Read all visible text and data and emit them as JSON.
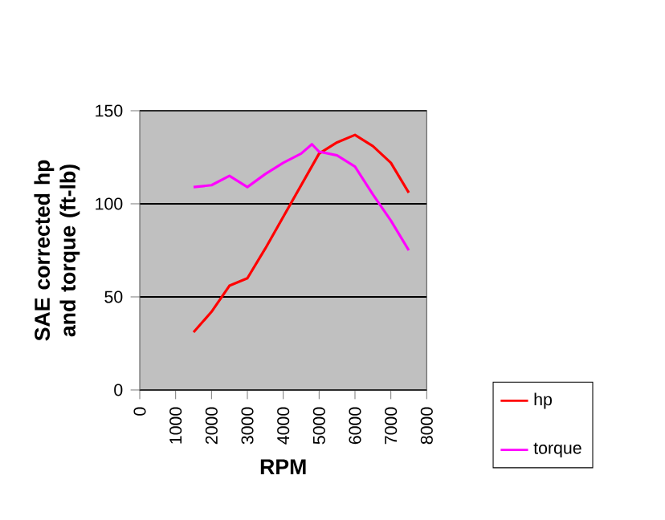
{
  "chart_data": {
    "type": "line",
    "xlabel": "RPM",
    "ylabel": "SAE corrected hp and torque (ft-lb)",
    "xlim": [
      0,
      8000
    ],
    "xticks": [
      0,
      1000,
      2000,
      3000,
      4000,
      5000,
      6000,
      7000,
      8000
    ],
    "ylim": [
      0,
      150
    ],
    "yticks": [
      0,
      50,
      100,
      150
    ],
    "grid": "y",
    "legend": "right",
    "marker": "none",
    "line_style": "solid",
    "series": [
      {
        "name": "hp",
        "color": "#ff0000",
        "x": [
          1500,
          2000,
          2500,
          3000,
          3500,
          4000,
          4500,
          5000,
          5500,
          6000,
          6500,
          7000,
          7500
        ],
        "values": [
          31,
          42,
          56,
          60,
          76,
          93,
          110,
          127,
          133,
          137,
          131,
          122,
          106
        ]
      },
      {
        "name": "torque",
        "color": "#ff00ff",
        "x": [
          1500,
          2000,
          2500,
          3000,
          3500,
          4000,
          4500,
          4800,
          5000,
          5500,
          6000,
          6500,
          7000,
          7500
        ],
        "values": [
          109,
          110,
          115,
          109,
          116,
          122,
          127,
          132,
          128,
          126,
          120,
          105,
          91,
          75
        ]
      }
    ]
  }
}
